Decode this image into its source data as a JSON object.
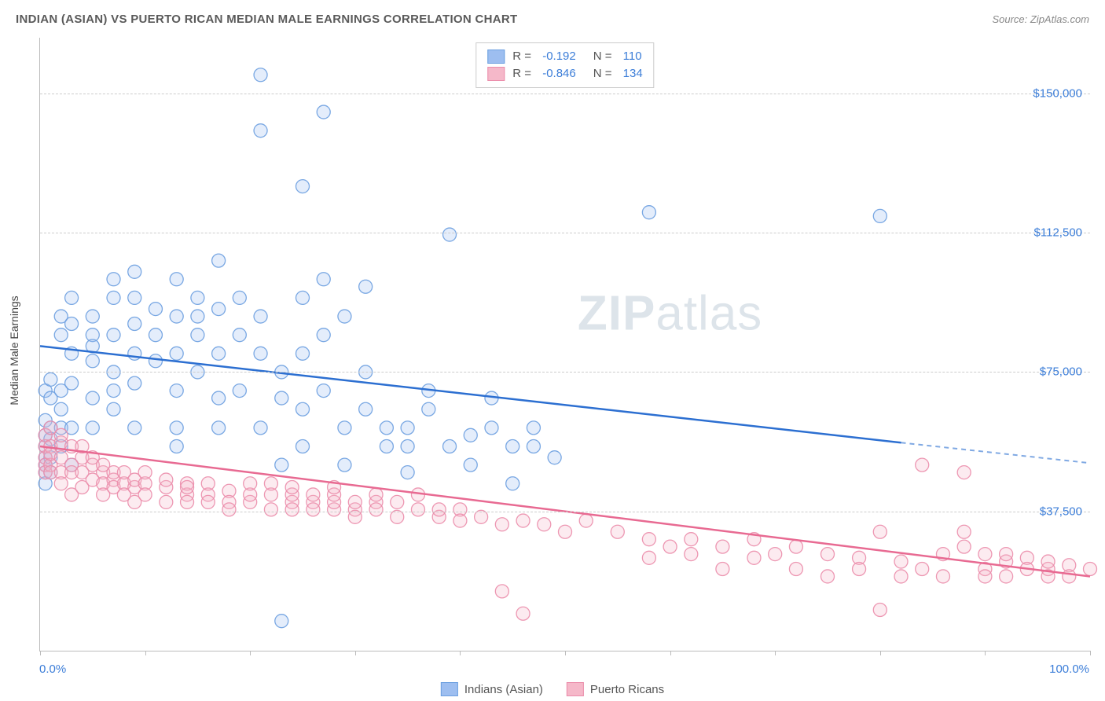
{
  "title": "INDIAN (ASIAN) VS PUERTO RICAN MEDIAN MALE EARNINGS CORRELATION CHART",
  "source": "Source: ZipAtlas.com",
  "ylabel": "Median Male Earnings",
  "watermark_a": "ZIP",
  "watermark_b": "atlas",
  "chart": {
    "type": "scatter",
    "xlim": [
      0,
      100
    ],
    "ylim": [
      0,
      165000
    ],
    "x_axis_label_left": "0.0%",
    "x_axis_label_right": "100.0%",
    "yticks": [
      37500,
      75000,
      112500,
      150000
    ],
    "ytick_labels": [
      "$37,500",
      "$75,000",
      "$112,500",
      "$150,000"
    ],
    "xticks": [
      0,
      10,
      20,
      30,
      40,
      50,
      60,
      70,
      80,
      90,
      100
    ],
    "background_color": "#ffffff",
    "grid_color": "#cccccc",
    "axis_color": "#bbbbbb",
    "tick_label_color": "#3b7dd8",
    "marker_radius": 8.5,
    "marker_fill_opacity": 0.28,
    "marker_stroke_opacity": 0.9,
    "series": [
      {
        "name": "Indians (Asian)",
        "color_fill": "#9dbef0",
        "color_stroke": "#6b9fe0",
        "trend_color": "#2c6fd1",
        "R": "-0.192",
        "N": "110",
        "trend": {
          "x1": 0,
          "y1": 82000,
          "x2": 82,
          "y2": 56000,
          "x2dash": 100,
          "y2dash": 50500
        },
        "points": [
          [
            0.5,
            50000
          ],
          [
            0.5,
            55000
          ],
          [
            0.5,
            62000
          ],
          [
            0.5,
            70000
          ],
          [
            0.5,
            48000
          ],
          [
            0.5,
            45000
          ],
          [
            0.5,
            52000
          ],
          [
            0.5,
            58000
          ],
          [
            1,
            60000
          ],
          [
            1,
            68000
          ],
          [
            1,
            73000
          ],
          [
            1,
            52000
          ],
          [
            1,
            48000
          ],
          [
            1,
            57000
          ],
          [
            2,
            65000
          ],
          [
            2,
            70000
          ],
          [
            2,
            85000
          ],
          [
            2,
            90000
          ],
          [
            2,
            60000
          ],
          [
            2,
            55000
          ],
          [
            3,
            60000
          ],
          [
            3,
            72000
          ],
          [
            3,
            80000
          ],
          [
            3,
            88000
          ],
          [
            3,
            95000
          ],
          [
            3,
            50000
          ],
          [
            5,
            85000
          ],
          [
            5,
            78000
          ],
          [
            5,
            82000
          ],
          [
            5,
            90000
          ],
          [
            5,
            68000
          ],
          [
            5,
            60000
          ],
          [
            7,
            75000
          ],
          [
            7,
            85000
          ],
          [
            7,
            95000
          ],
          [
            7,
            100000
          ],
          [
            7,
            70000
          ],
          [
            7,
            65000
          ],
          [
            9,
            88000
          ],
          [
            9,
            95000
          ],
          [
            9,
            80000
          ],
          [
            9,
            72000
          ],
          [
            9,
            102000
          ],
          [
            9,
            60000
          ],
          [
            11,
            92000
          ],
          [
            11,
            85000
          ],
          [
            11,
            78000
          ],
          [
            13,
            70000
          ],
          [
            13,
            80000
          ],
          [
            13,
            90000
          ],
          [
            13,
            100000
          ],
          [
            13,
            60000
          ],
          [
            13,
            55000
          ],
          [
            15,
            85000
          ],
          [
            15,
            95000
          ],
          [
            15,
            90000
          ],
          [
            15,
            75000
          ],
          [
            17,
            80000
          ],
          [
            17,
            60000
          ],
          [
            17,
            68000
          ],
          [
            17,
            92000
          ],
          [
            17,
            105000
          ],
          [
            19,
            95000
          ],
          [
            19,
            85000
          ],
          [
            19,
            70000
          ],
          [
            21,
            90000
          ],
          [
            21,
            80000
          ],
          [
            21,
            60000
          ],
          [
            21,
            140000
          ],
          [
            21,
            155000
          ],
          [
            23,
            68000
          ],
          [
            23,
            75000
          ],
          [
            23,
            50000
          ],
          [
            23,
            8000
          ],
          [
            25,
            125000
          ],
          [
            25,
            95000
          ],
          [
            25,
            80000
          ],
          [
            25,
            65000
          ],
          [
            25,
            55000
          ],
          [
            27,
            145000
          ],
          [
            27,
            100000
          ],
          [
            27,
            85000
          ],
          [
            27,
            70000
          ],
          [
            29,
            90000
          ],
          [
            29,
            60000
          ],
          [
            29,
            50000
          ],
          [
            31,
            65000
          ],
          [
            31,
            75000
          ],
          [
            31,
            98000
          ],
          [
            33,
            60000
          ],
          [
            33,
            55000
          ],
          [
            35,
            55000
          ],
          [
            35,
            48000
          ],
          [
            35,
            60000
          ],
          [
            37,
            70000
          ],
          [
            37,
            65000
          ],
          [
            39,
            112000
          ],
          [
            39,
            55000
          ],
          [
            41,
            50000
          ],
          [
            41,
            58000
          ],
          [
            43,
            60000
          ],
          [
            43,
            68000
          ],
          [
            45,
            55000
          ],
          [
            45,
            45000
          ],
          [
            47,
            55000
          ],
          [
            47,
            60000
          ],
          [
            49,
            52000
          ],
          [
            58,
            118000
          ],
          [
            80,
            117000
          ]
        ]
      },
      {
        "name": "Puerto Ricans",
        "color_fill": "#f5b8c9",
        "color_stroke": "#eb8dab",
        "trend_color": "#e86a92",
        "R": "-0.846",
        "N": "134",
        "trend": {
          "x1": 0,
          "y1": 55000,
          "x2": 100,
          "y2": 20000
        },
        "points": [
          [
            0.5,
            52000
          ],
          [
            0.5,
            55000
          ],
          [
            0.5,
            50000
          ],
          [
            0.5,
            48000
          ],
          [
            0.5,
            58000
          ],
          [
            1,
            50000
          ],
          [
            1,
            55000
          ],
          [
            1,
            60000
          ],
          [
            1,
            48000
          ],
          [
            1,
            53000
          ],
          [
            2,
            52000
          ],
          [
            2,
            48000
          ],
          [
            2,
            56000
          ],
          [
            2,
            58000
          ],
          [
            2,
            45000
          ],
          [
            3,
            55000
          ],
          [
            3,
            50000
          ],
          [
            3,
            48000
          ],
          [
            3,
            42000
          ],
          [
            4,
            48000
          ],
          [
            4,
            52000
          ],
          [
            4,
            55000
          ],
          [
            4,
            44000
          ],
          [
            5,
            50000
          ],
          [
            5,
            46000
          ],
          [
            5,
            52000
          ],
          [
            6,
            48000
          ],
          [
            6,
            50000
          ],
          [
            6,
            45000
          ],
          [
            6,
            42000
          ],
          [
            7,
            46000
          ],
          [
            7,
            48000
          ],
          [
            7,
            44000
          ],
          [
            8,
            45000
          ],
          [
            8,
            48000
          ],
          [
            8,
            42000
          ],
          [
            9,
            44000
          ],
          [
            9,
            46000
          ],
          [
            9,
            40000
          ],
          [
            10,
            45000
          ],
          [
            10,
            42000
          ],
          [
            10,
            48000
          ],
          [
            12,
            44000
          ],
          [
            12,
            46000
          ],
          [
            12,
            40000
          ],
          [
            14,
            42000
          ],
          [
            14,
            45000
          ],
          [
            14,
            40000
          ],
          [
            14,
            44000
          ],
          [
            16,
            42000
          ],
          [
            16,
            40000
          ],
          [
            16,
            45000
          ],
          [
            18,
            43000
          ],
          [
            18,
            40000
          ],
          [
            18,
            38000
          ],
          [
            20,
            40000
          ],
          [
            20,
            42000
          ],
          [
            20,
            45000
          ],
          [
            22,
            42000
          ],
          [
            22,
            38000
          ],
          [
            22,
            45000
          ],
          [
            24,
            40000
          ],
          [
            24,
            42000
          ],
          [
            24,
            44000
          ],
          [
            24,
            38000
          ],
          [
            26,
            40000
          ],
          [
            26,
            38000
          ],
          [
            26,
            42000
          ],
          [
            28,
            38000
          ],
          [
            28,
            40000
          ],
          [
            28,
            42000
          ],
          [
            28,
            44000
          ],
          [
            30,
            38000
          ],
          [
            30,
            40000
          ],
          [
            30,
            36000
          ],
          [
            32,
            40000
          ],
          [
            32,
            38000
          ],
          [
            32,
            42000
          ],
          [
            34,
            40000
          ],
          [
            34,
            36000
          ],
          [
            36,
            38000
          ],
          [
            36,
            42000
          ],
          [
            38,
            36000
          ],
          [
            38,
            38000
          ],
          [
            40,
            38000
          ],
          [
            40,
            35000
          ],
          [
            42,
            36000
          ],
          [
            44,
            16000
          ],
          [
            44,
            34000
          ],
          [
            46,
            35000
          ],
          [
            46,
            10000
          ],
          [
            48,
            34000
          ],
          [
            50,
            32000
          ],
          [
            52,
            35000
          ],
          [
            55,
            32000
          ],
          [
            58,
            30000
          ],
          [
            58,
            25000
          ],
          [
            60,
            28000
          ],
          [
            62,
            26000
          ],
          [
            62,
            30000
          ],
          [
            65,
            28000
          ],
          [
            65,
            22000
          ],
          [
            68,
            30000
          ],
          [
            68,
            25000
          ],
          [
            70,
            26000
          ],
          [
            72,
            22000
          ],
          [
            72,
            28000
          ],
          [
            75,
            26000
          ],
          [
            75,
            20000
          ],
          [
            78,
            25000
          ],
          [
            78,
            22000
          ],
          [
            80,
            32000
          ],
          [
            80,
            11000
          ],
          [
            82,
            24000
          ],
          [
            82,
            20000
          ],
          [
            84,
            50000
          ],
          [
            84,
            22000
          ],
          [
            86,
            26000
          ],
          [
            86,
            20000
          ],
          [
            88,
            48000
          ],
          [
            88,
            28000
          ],
          [
            88,
            32000
          ],
          [
            90,
            22000
          ],
          [
            90,
            26000
          ],
          [
            90,
            20000
          ],
          [
            92,
            24000
          ],
          [
            92,
            20000
          ],
          [
            92,
            26000
          ],
          [
            94,
            25000
          ],
          [
            94,
            22000
          ],
          [
            96,
            22000
          ],
          [
            96,
            24000
          ],
          [
            96,
            20000
          ],
          [
            98,
            23000
          ],
          [
            98,
            20000
          ],
          [
            100,
            22000
          ]
        ]
      }
    ]
  },
  "legend_bottom": [
    {
      "label": "Indians (Asian)",
      "fill": "#9dbef0",
      "stroke": "#6b9fe0"
    },
    {
      "label": "Puerto Ricans",
      "fill": "#f5b8c9",
      "stroke": "#eb8dab"
    }
  ]
}
